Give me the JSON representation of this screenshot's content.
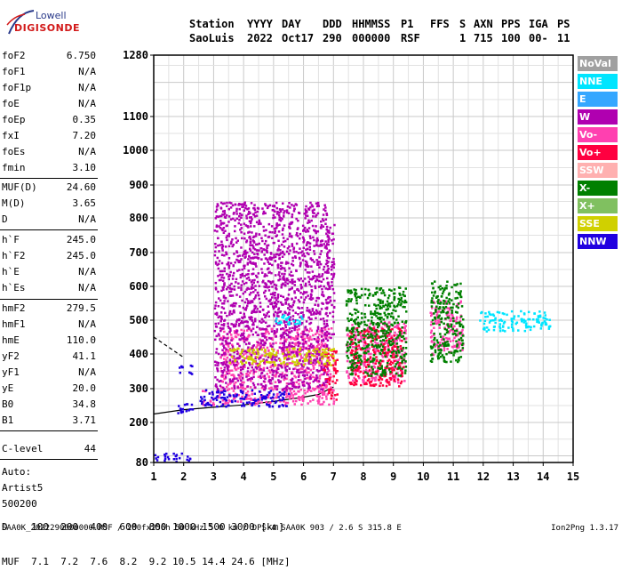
{
  "logo": {
    "line1": "Lowell",
    "line2": "DIGISONDE"
  },
  "header": {
    "row1": [
      "Station",
      "YYYY",
      "DAY",
      "DDD",
      "HHMMSS",
      "P1",
      "FFS",
      "S",
      "AXN",
      "PPS",
      "IGA",
      "PS"
    ],
    "row2": [
      "SaoLuis",
      "2022",
      "Oct17",
      "290",
      "000000",
      "RSF",
      "1",
      "715",
      "100",
      "00-",
      "11"
    ]
  },
  "params": {
    "group1": [
      {
        "k": "foF2",
        "v": "6.750"
      },
      {
        "k": "foF1",
        "v": "N/A"
      },
      {
        "k": "foF1p",
        "v": "N/A"
      },
      {
        "k": "foE",
        "v": "N/A"
      },
      {
        "k": "foEp",
        "v": "0.35"
      },
      {
        "k": "fxI",
        "v": "7.20"
      },
      {
        "k": "foEs",
        "v": "N/A"
      },
      {
        "k": "fmin",
        "v": "3.10"
      }
    ],
    "group2": [
      {
        "k": "MUF(D)",
        "v": "24.60"
      },
      {
        "k": "M(D)",
        "v": "3.65"
      },
      {
        "k": "D",
        "v": "N/A"
      }
    ],
    "group3": [
      {
        "k": "h`F",
        "v": "245.0"
      },
      {
        "k": "h`F2",
        "v": "245.0"
      },
      {
        "k": "h`E",
        "v": "N/A"
      },
      {
        "k": "h`Es",
        "v": "N/A"
      }
    ],
    "group4": [
      {
        "k": "hmF2",
        "v": "279.5"
      },
      {
        "k": "hmF1",
        "v": "N/A"
      },
      {
        "k": "hmE",
        "v": "110.0"
      },
      {
        "k": "yF2",
        "v": "41.1"
      },
      {
        "k": "yF1",
        "v": "N/A"
      },
      {
        "k": "yE",
        "v": "20.0"
      },
      {
        "k": "B0",
        "v": "34.8"
      },
      {
        "k": "B1",
        "v": "3.71"
      }
    ],
    "group5": [
      {
        "k": "C-level",
        "v": "44"
      }
    ],
    "auto": [
      "Auto:",
      "Artist5",
      "500200"
    ]
  },
  "legend": [
    {
      "label": "NoVal",
      "color": "#a0a0a0"
    },
    {
      "label": "NNE",
      "color": "#00e5ff"
    },
    {
      "label": "E",
      "color": "#35a7ff"
    },
    {
      "label": "W",
      "color": "#b000b0"
    },
    {
      "label": "Vo-",
      "color": "#ff40b0"
    },
    {
      "label": "Vo+",
      "color": "#ff0040"
    },
    {
      "label": "SSW",
      "color": "#ffb0b0"
    },
    {
      "label": "X-",
      "color": "#008000"
    },
    {
      "label": "X+",
      "color": "#80c060"
    },
    {
      "label": "SSE",
      "color": "#d0d000"
    },
    {
      "label": "NNW",
      "color": "#2000e0"
    }
  ],
  "bottom": {
    "d_row": "D    100  200  400  600  800 1000 1500 3000 [km]",
    "muf_row": "MUF  7.1  7.2  7.6  8.2  9.2 10.5 14.4 24.6 [MHz]",
    "footer": "SAA0K_2022290000000.RSF / 280fx256h 50 kHz 5.0 km / DPS-4 SAA0K 903 / 2.6 S 315.8 E",
    "version": "Ion2Png 1.3.17"
  },
  "chart_data": {
    "type": "scatter",
    "xlabel": "",
    "ylabel": "",
    "xlim": [
      1,
      15
    ],
    "ylim": [
      80,
      1280
    ],
    "x_ticks": [
      1,
      2,
      3,
      4,
      5,
      6,
      7,
      8,
      9,
      10,
      11,
      12,
      13,
      14,
      15
    ],
    "y_ticks": [
      80,
      200,
      300,
      400,
      500,
      600,
      700,
      800,
      900,
      1000,
      1100,
      1280
    ],
    "y_scale": "nonlinear (ionogram virtual height scale)",
    "grid": true,
    "series": [
      {
        "name": "Vo-",
        "color": "#ff40b0",
        "clusters": [
          {
            "x": [
              2.6,
              7.0
            ],
            "y": [
              255,
              300
            ]
          },
          {
            "x": [
              3.2,
              6.9
            ],
            "y": [
              300,
              480
            ]
          },
          {
            "x": [
              7.4,
              9.4
            ],
            "y": [
              320,
              500
            ]
          },
          {
            "x": [
              10.2,
              11.3
            ],
            "y": [
              400,
              560
            ]
          }
        ]
      },
      {
        "name": "Vo+",
        "color": "#ff0040",
        "clusters": [
          {
            "x": [
              6.6,
              7.1
            ],
            "y": [
              270,
              420
            ]
          },
          {
            "x": [
              7.5,
              9.3
            ],
            "y": [
              310,
              480
            ]
          }
        ]
      },
      {
        "name": "NNW",
        "color": "#2000e0",
        "clusters": [
          {
            "x": [
              1.6,
              2.3
            ],
            "y": [
              230,
              260
            ]
          },
          {
            "x": [
              2.5,
              5.5
            ],
            "y": [
              250,
              300
            ]
          },
          {
            "x": [
              1.8,
              2.3
            ],
            "y": [
              345,
              370
            ]
          },
          {
            "x": [
              1.0,
              2.2
            ],
            "y": [
              85,
              110
            ]
          }
        ]
      },
      {
        "name": "W",
        "color": "#b000b0",
        "clusters": [
          {
            "x": [
              3.0,
              6.8
            ],
            "y": [
              300,
              850
            ]
          },
          {
            "x": [
              6.7,
              7.0
            ],
            "y": [
              450,
              800
            ]
          }
        ]
      },
      {
        "name": "X-",
        "color": "#008000",
        "clusters": [
          {
            "x": [
              7.4,
              9.4
            ],
            "y": [
              340,
              600
            ]
          },
          {
            "x": [
              10.2,
              11.3
            ],
            "y": [
              380,
              620
            ]
          }
        ]
      },
      {
        "name": "NNE",
        "color": "#00e5ff",
        "clusters": [
          {
            "x": [
              5.0,
              6.0
            ],
            "y": [
              490,
              520
            ]
          },
          {
            "x": [
              11.8,
              14.2
            ],
            "y": [
              470,
              530
            ]
          }
        ]
      },
      {
        "name": "SSE",
        "color": "#d0d000",
        "clusters": [
          {
            "x": [
              3.5,
              7.0
            ],
            "y": [
              370,
              420
            ]
          }
        ]
      }
    ],
    "traces": [
      {
        "name": "trace-lower",
        "x": [
          1.0,
          2.0,
          3.0,
          4.0,
          5.0,
          6.0,
          6.5,
          7.0
        ],
        "y": [
          225,
          238,
          245,
          252,
          262,
          275,
          283,
          305
        ]
      },
      {
        "name": "trace-upper-dashed",
        "x": [
          1.0,
          1.5,
          2.0
        ],
        "y": [
          450,
          420,
          390
        ]
      }
    ]
  }
}
